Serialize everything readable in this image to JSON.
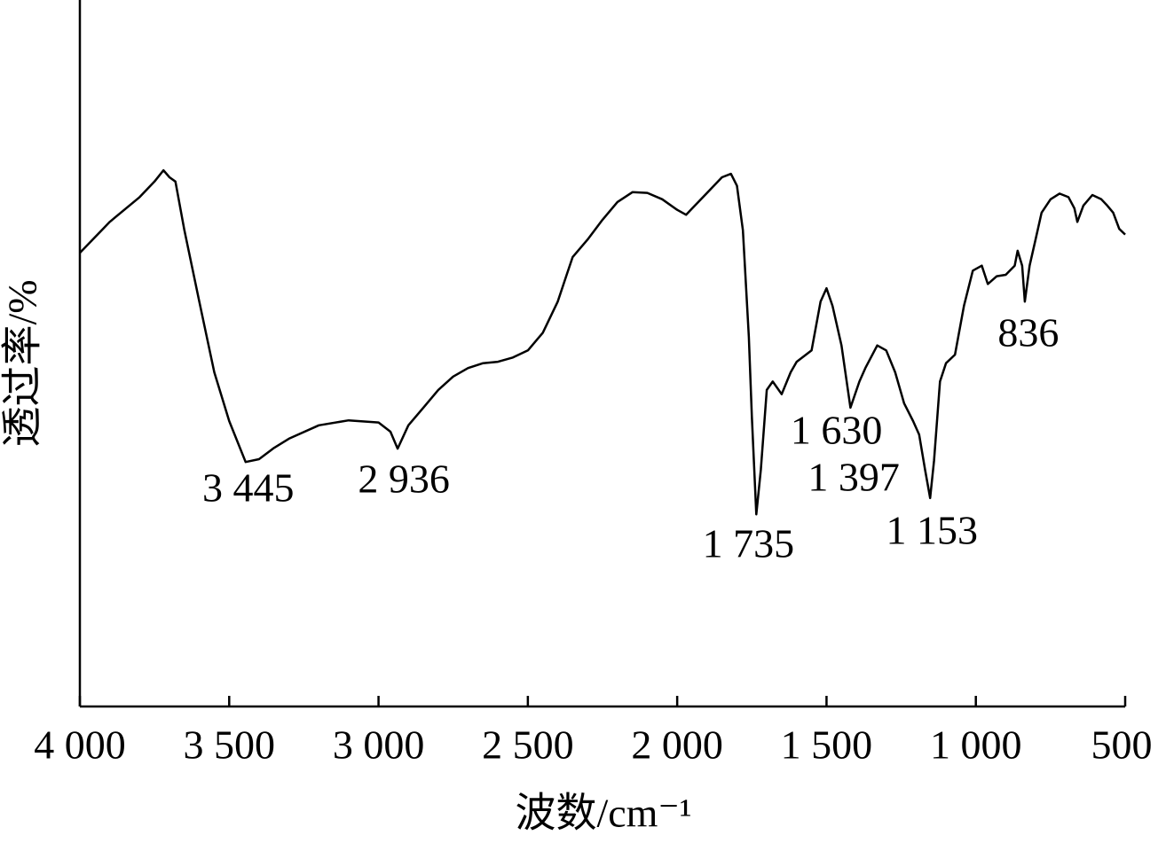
{
  "chart_data": {
    "type": "line",
    "x_label": "波数/cm⁻¹",
    "y_label": "透过率/%",
    "xlim": [
      4000,
      500
    ],
    "ylim": [
      0,
      100
    ],
    "xticks": [
      {
        "value": 4000,
        "label": "4 000"
      },
      {
        "value": 3500,
        "label": "3 500"
      },
      {
        "value": 3000,
        "label": "3 000"
      },
      {
        "value": 2500,
        "label": "2 500"
      },
      {
        "value": 2000,
        "label": "2 000"
      },
      {
        "value": 1500,
        "label": "1 500"
      },
      {
        "value": 1000,
        "label": "1 000"
      },
      500
    ],
    "color": "#000000",
    "x": [
      4000,
      3900,
      3800,
      3750,
      3720,
      3700,
      3680,
      3650,
      3600,
      3550,
      3500,
      3445,
      3400,
      3350,
      3300,
      3200,
      3100,
      3000,
      2960,
      2936,
      2900,
      2850,
      2800,
      2750,
      2700,
      2650,
      2600,
      2550,
      2500,
      2450,
      2400,
      2370,
      2350,
      2300,
      2250,
      2200,
      2150,
      2100,
      2050,
      2000,
      1970,
      1950,
      1900,
      1850,
      1820,
      1800,
      1780,
      1760,
      1750,
      1735,
      1720,
      1700,
      1680,
      1650,
      1620,
      1600,
      1550,
      1520,
      1500,
      1480,
      1450,
      1420,
      1390,
      1370,
      1330,
      1300,
      1270,
      1240,
      1210,
      1190,
      1170,
      1153,
      1140,
      1120,
      1100,
      1070,
      1040,
      1010,
      980,
      960,
      930,
      900,
      870,
      860,
      845,
      836,
      820,
      800,
      780,
      750,
      720,
      690,
      670,
      660,
      640,
      610,
      580,
      560,
      540,
      520,
      500
    ],
    "y": [
      64.2,
      68.6,
      72.1,
      74.3,
      75.9,
      74.9,
      74.3,
      67.4,
      57.3,
      47.3,
      40.4,
      34.6,
      35.0,
      36.6,
      37.9,
      39.8,
      40.5,
      40.2,
      38.9,
      36.5,
      39.8,
      42.3,
      44.8,
      46.7,
      47.9,
      48.6,
      48.8,
      49.4,
      50.4,
      52.9,
      57.3,
      61.1,
      63.6,
      66.1,
      68.9,
      71.4,
      72.8,
      72.7,
      71.8,
      70.3,
      69.6,
      70.5,
      72.7,
      74.9,
      75.4,
      73.7,
      67.4,
      52.3,
      41.0,
      27.2,
      33.5,
      44.8,
      46.0,
      44.2,
      47.3,
      48.8,
      50.4,
      57.3,
      59.2,
      56.7,
      51.1,
      42.3,
      46.0,
      47.9,
      51.1,
      50.4,
      47.3,
      42.9,
      40.4,
      38.5,
      33.5,
      29.5,
      34.8,
      46.0,
      48.6,
      49.8,
      56.7,
      61.7,
      62.4,
      59.8,
      60.9,
      61.1,
      62.4,
      64.5,
      62.4,
      57.3,
      62.4,
      66.1,
      69.9,
      71.8,
      72.6,
      72.1,
      70.5,
      68.6,
      70.9,
      72.4,
      71.8,
      70.9,
      69.9,
      67.6,
      66.8
    ],
    "annotations": [
      {
        "text": "3 445",
        "x": 3445
      },
      {
        "text": "2 936",
        "x": 2936
      },
      {
        "text": "1 735",
        "x": 1735
      },
      {
        "text": "1 630",
        "x": 1630
      },
      {
        "text": "1 397",
        "x": 1397
      },
      {
        "text": "1 153",
        "x": 1153
      },
      {
        "text": "836",
        "x": 836
      }
    ]
  }
}
